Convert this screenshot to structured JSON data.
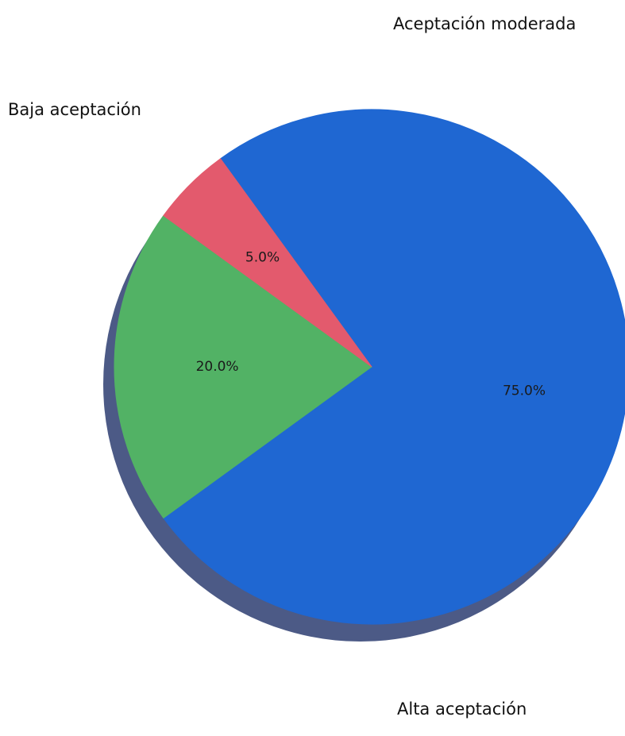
{
  "chart_data": {
    "type": "pie",
    "title": "",
    "slices": [
      {
        "label": "Alta aceptación",
        "value": 75.0,
        "pct_text": "75.0%",
        "color": "#1f67d2"
      },
      {
        "label": "Aceptación moderada",
        "value": 20.0,
        "pct_text": "20.0%",
        "color": "#52b265"
      },
      {
        "label": "Baja aceptación",
        "value": 5.0,
        "pct_text": "5.0%",
        "color": "#e35a6d"
      }
    ],
    "shadow": true,
    "shadow_color": "#4c5a86",
    "legend": "none"
  }
}
